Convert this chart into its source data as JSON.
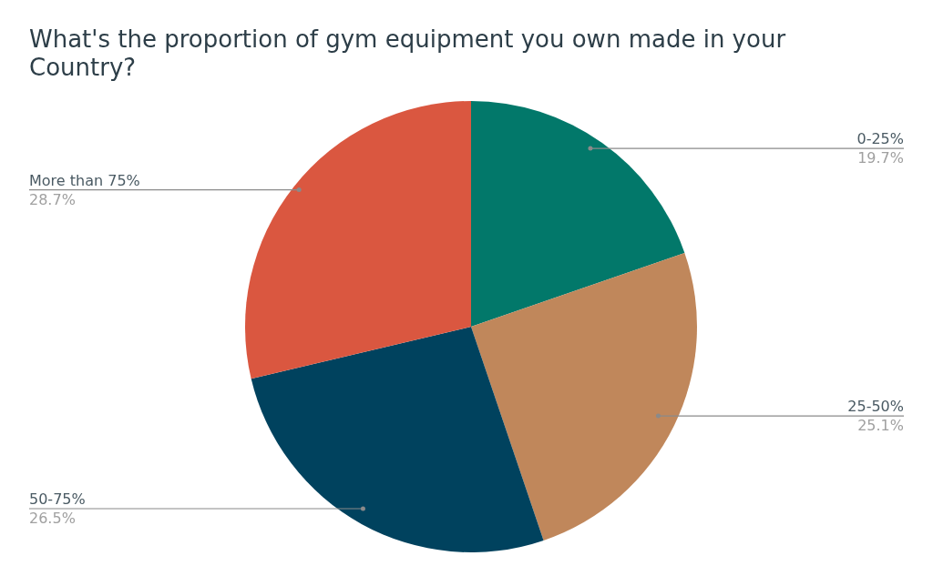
{
  "chart_data": {
    "type": "pie",
    "title": "What's the proportion of gym equipment you own made in your Country?",
    "categories": [
      "0-25%",
      "25-50%",
      "50-75%",
      "More than 75%"
    ],
    "values": [
      19.7,
      25.1,
      26.5,
      28.7
    ],
    "value_labels": [
      "19.7%",
      "25.1%",
      "26.5%",
      "28.7%"
    ],
    "colors": [
      "#02786a",
      "#c0875b",
      "#00425e",
      "#da5740"
    ]
  }
}
